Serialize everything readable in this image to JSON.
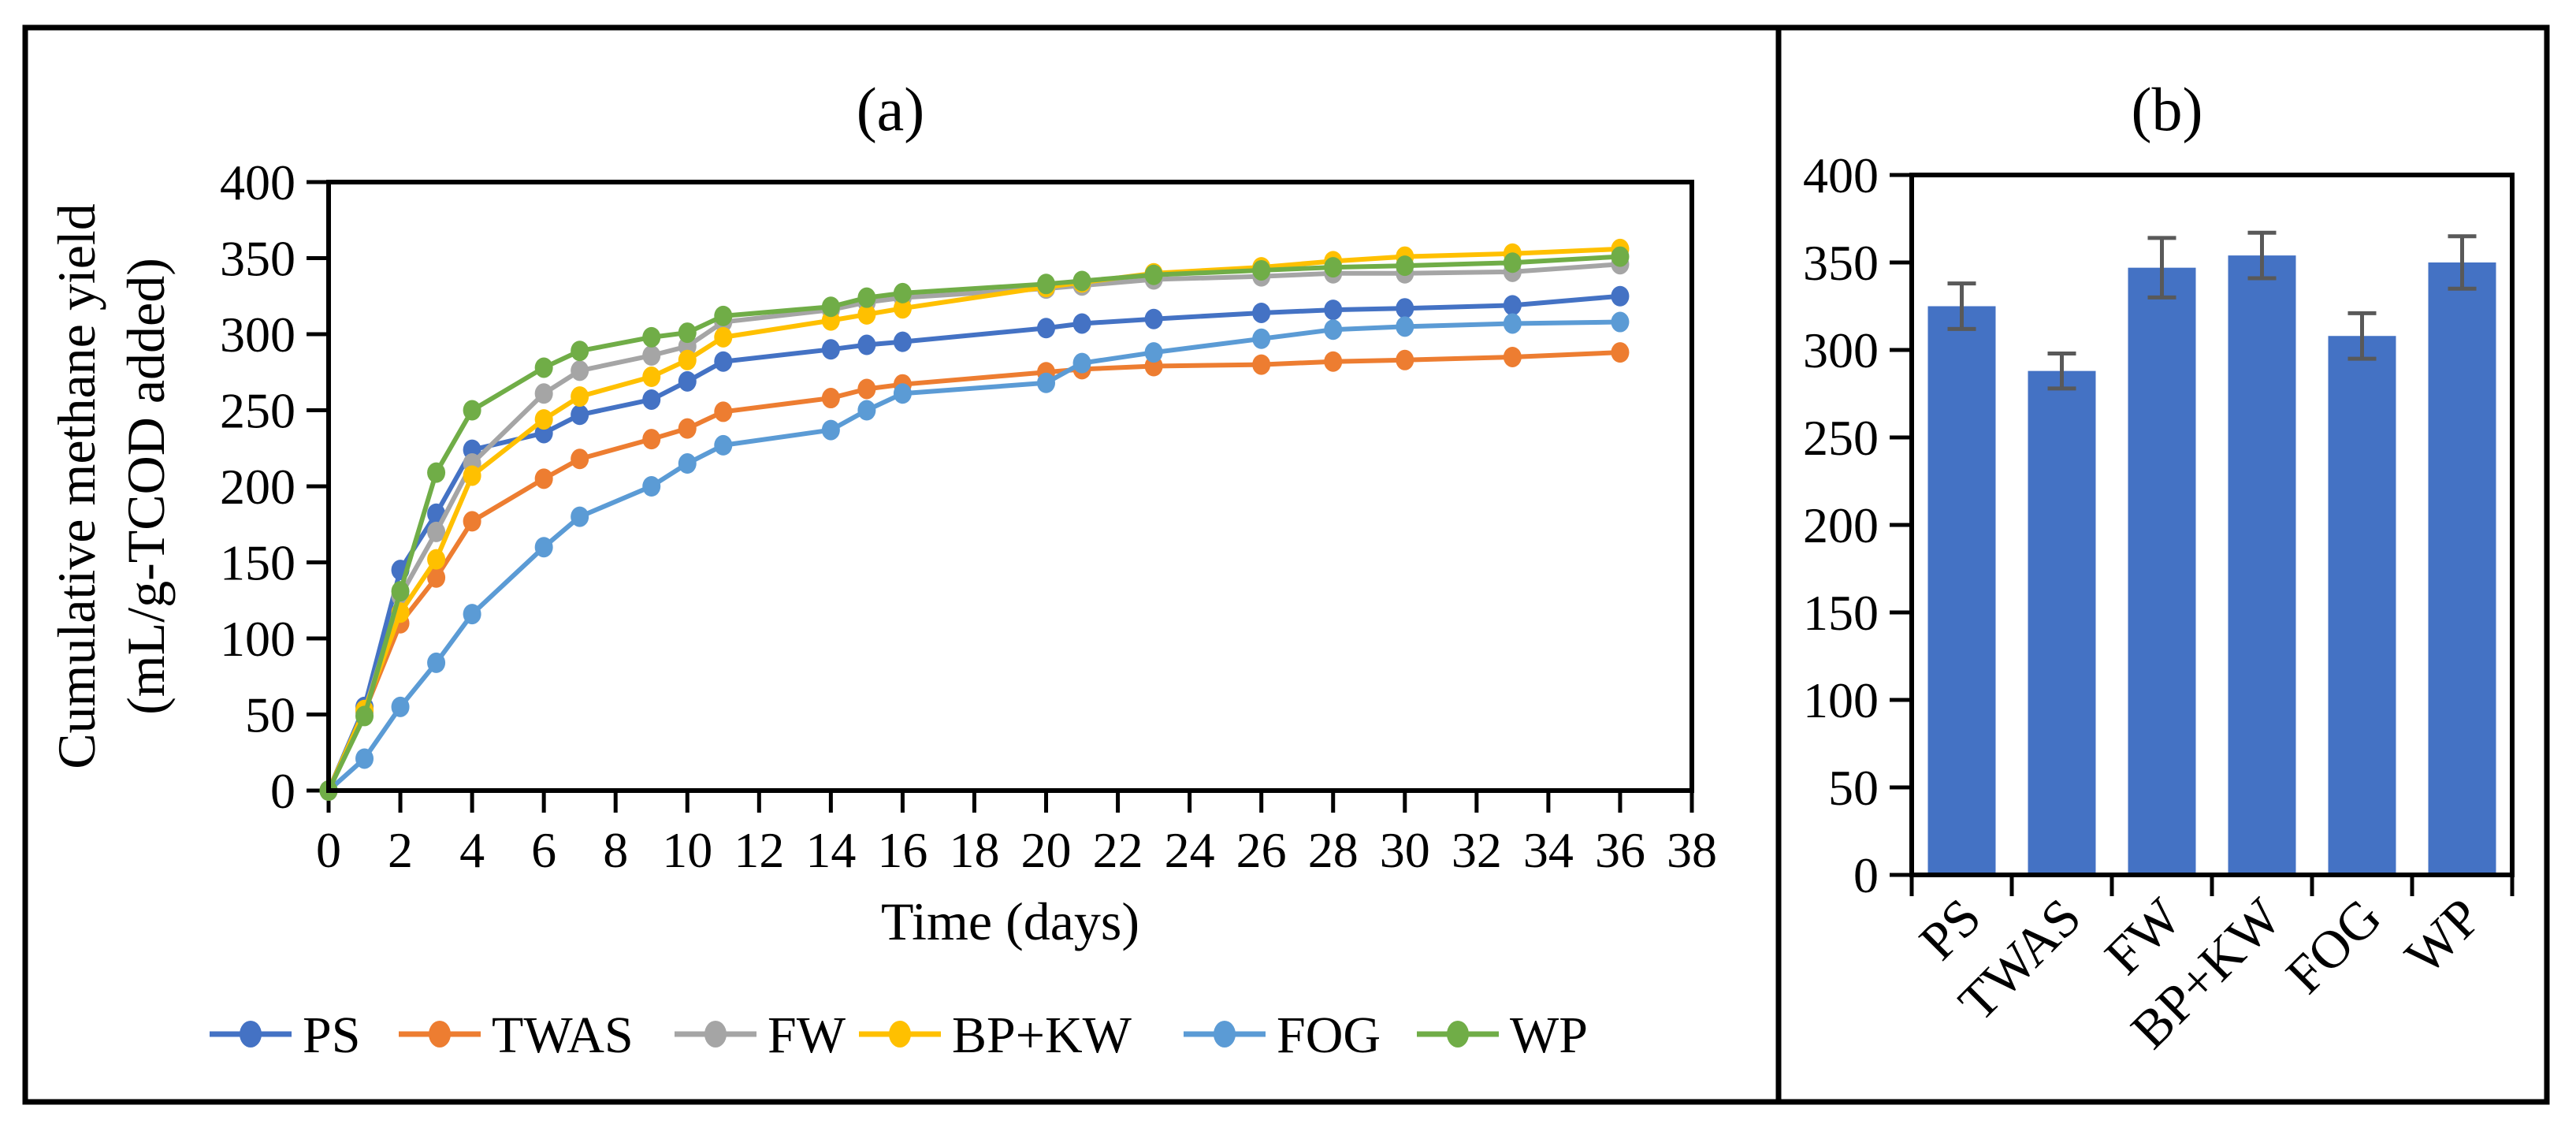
{
  "figure": {
    "background": "#ffffff",
    "border_color": "#000000",
    "accent_blue": "#4472C4"
  },
  "chart_data": [
    {
      "type": "line",
      "title": "(a)",
      "xlabel": "Time (days)",
      "ylabel": "Cumulative methane yield (mL/g-TCOD added)",
      "ylabel_line1": "Cumulative methane yield",
      "ylabel_line2": "(mL/g-TCOD added)",
      "xlim": [
        0,
        38
      ],
      "ylim": [
        0,
        400
      ],
      "x_tick_step": 2,
      "y_tick_step": 50,
      "grid": false,
      "legend_position": "bottom",
      "x": [
        0,
        1,
        2,
        3,
        4,
        6,
        7,
        9,
        10,
        11,
        14,
        15,
        16,
        20,
        21,
        23,
        26,
        28,
        30,
        33,
        36
      ],
      "series": [
        {
          "name": "PS",
          "color": "#4472C4",
          "values": [
            0,
            55,
            145,
            182,
            224,
            235,
            247,
            257,
            269,
            282,
            290,
            293,
            295,
            304,
            307,
            310,
            314,
            316,
            317,
            319,
            325
          ]
        },
        {
          "name": "TWAS",
          "color": "#ED7D31",
          "values": [
            0,
            52,
            110,
            140,
            177,
            205,
            218,
            231,
            238,
            249,
            258,
            264,
            267,
            275,
            277,
            279,
            280,
            282,
            283,
            285,
            288
          ]
        },
        {
          "name": "FW",
          "color": "#A5A5A5",
          "values": [
            0,
            52,
            128,
            170,
            215,
            261,
            276,
            286,
            292,
            308,
            316,
            321,
            324,
            330,
            332,
            336,
            338,
            340,
            340,
            341,
            346
          ]
        },
        {
          "name": "BP+KW",
          "color": "#FFC000",
          "values": [
            0,
            53,
            117,
            152,
            207,
            244,
            259,
            272,
            283,
            298,
            309,
            313,
            317,
            331,
            334,
            340,
            344,
            348,
            351,
            353,
            356
          ]
        },
        {
          "name": "FOG",
          "color": "#5B9BD5",
          "values": [
            0,
            21,
            55,
            84,
            116,
            160,
            180,
            200,
            215,
            227,
            237,
            250,
            261,
            268,
            281,
            288,
            297,
            303,
            305,
            307,
            308
          ]
        },
        {
          "name": "WP",
          "color": "#70AD47",
          "values": [
            0,
            49,
            131,
            209,
            250,
            278,
            289,
            298,
            301,
            312,
            318,
            324,
            327,
            333,
            335,
            339,
            342,
            344,
            345,
            347,
            351
          ]
        }
      ]
    },
    {
      "type": "bar",
      "title": "(b)",
      "categories": [
        "PS",
        "TWAS",
        "FW",
        "BP+KW",
        "FOG",
        "WP"
      ],
      "values": [
        325,
        288,
        347,
        354,
        308,
        350
      ],
      "errors": [
        13,
        10,
        17,
        13,
        13,
        15
      ],
      "bar_color": "#4472C4",
      "error_color": "#595959",
      "ylim": [
        0,
        400
      ],
      "y_tick_step": 50,
      "grid": false
    }
  ]
}
